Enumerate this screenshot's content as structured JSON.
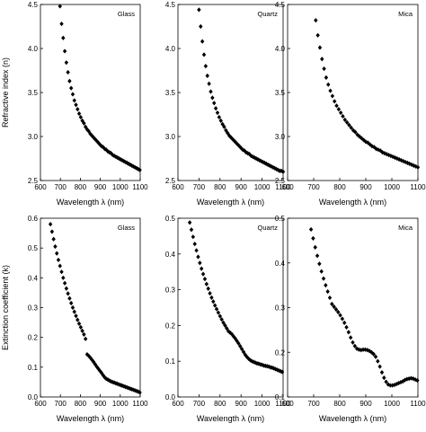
{
  "figure": {
    "background": "#ffffff",
    "marker_color": "#000000"
  },
  "chart_data": [
    {
      "type": "scatter",
      "row": "top",
      "title": "Glass",
      "xlabel": "Wavelength λ (nm)",
      "ylabel": "Refractive index (n)",
      "xlim": [
        600,
        1100
      ],
      "ylim": [
        2.5,
        4.5
      ],
      "xticks": [
        600,
        700,
        800,
        900,
        1000,
        1100
      ],
      "yticks": [
        "2.5",
        "3.0",
        "3.5",
        "4.0",
        "4.5"
      ],
      "x": [
        698,
        706,
        714,
        722,
        730,
        738,
        746,
        754,
        762,
        770,
        778,
        786,
        794,
        802,
        810,
        818,
        826,
        834,
        842,
        850,
        858,
        866,
        874,
        882,
        890,
        898,
        906,
        914,
        922,
        930,
        938,
        946,
        954,
        962,
        970,
        978,
        986,
        994,
        1002,
        1010,
        1018,
        1026,
        1034,
        1042,
        1050,
        1058,
        1066,
        1074,
        1082,
        1090,
        1098
      ],
      "y": [
        4.48,
        4.28,
        4.12,
        3.97,
        3.84,
        3.73,
        3.63,
        3.55,
        3.48,
        3.41,
        3.36,
        3.31,
        3.26,
        3.22,
        3.18,
        3.15,
        3.11,
        3.08,
        3.06,
        3.03,
        3.01,
        2.99,
        2.97,
        2.95,
        2.93,
        2.91,
        2.89,
        2.88,
        2.86,
        2.85,
        2.83,
        2.82,
        2.81,
        2.79,
        2.78,
        2.77,
        2.76,
        2.75,
        2.74,
        2.73,
        2.72,
        2.71,
        2.7,
        2.69,
        2.68,
        2.67,
        2.66,
        2.65,
        2.64,
        2.63,
        2.62
      ]
    },
    {
      "type": "scatter",
      "row": "top",
      "title": "Quartz",
      "xlabel": "Wavelength λ (nm)",
      "ylabel": "",
      "xlim": [
        600,
        1100
      ],
      "ylim": [
        2.5,
        4.5
      ],
      "xticks": [
        600,
        700,
        800,
        900,
        1000,
        1100
      ],
      "yticks": [
        "2.5",
        "3.0",
        "3.5",
        "4.0",
        "4.5"
      ],
      "x": [
        700,
        708,
        716,
        724,
        732,
        740,
        748,
        756,
        764,
        772,
        780,
        788,
        796,
        804,
        812,
        820,
        828,
        836,
        844,
        852,
        860,
        868,
        876,
        884,
        892,
        900,
        908,
        916,
        924,
        932,
        940,
        948,
        956,
        964,
        972,
        980,
        988,
        996,
        1004,
        1012,
        1020,
        1028,
        1036,
        1044,
        1052,
        1060,
        1068,
        1076,
        1084,
        1092,
        1100
      ],
      "y": [
        4.44,
        4.25,
        4.08,
        3.93,
        3.8,
        3.69,
        3.6,
        3.51,
        3.44,
        3.38,
        3.32,
        3.27,
        3.22,
        3.18,
        3.14,
        3.11,
        3.07,
        3.04,
        3.01,
        2.99,
        2.97,
        2.95,
        2.93,
        2.91,
        2.89,
        2.87,
        2.85,
        2.84,
        2.82,
        2.81,
        2.8,
        2.78,
        2.77,
        2.76,
        2.75,
        2.74,
        2.73,
        2.72,
        2.71,
        2.7,
        2.69,
        2.68,
        2.67,
        2.66,
        2.65,
        2.64,
        2.63,
        2.62,
        2.61,
        2.61,
        2.6
      ]
    },
    {
      "type": "scatter",
      "row": "top",
      "title": "Mica",
      "xlabel": "Wavelength λ (nm)",
      "ylabel": "",
      "xlim": [
        600,
        1100
      ],
      "ylim": [
        2.5,
        4.5
      ],
      "xticks": [
        600,
        700,
        800,
        900,
        1000,
        1100
      ],
      "yticks": [
        "2.5",
        "3.0",
        "3.5",
        "4.0",
        "4.5"
      ],
      "x": [
        708,
        716,
        724,
        732,
        740,
        748,
        756,
        764,
        772,
        780,
        788,
        796,
        804,
        812,
        820,
        828,
        836,
        844,
        852,
        860,
        868,
        876,
        884,
        892,
        900,
        908,
        916,
        924,
        932,
        940,
        948,
        956,
        964,
        972,
        980,
        988,
        996,
        1004,
        1012,
        1020,
        1028,
        1036,
        1044,
        1052,
        1060,
        1068,
        1076,
        1084,
        1092,
        1100
      ],
      "y": [
        4.32,
        4.15,
        4.01,
        3.88,
        3.77,
        3.67,
        3.59,
        3.52,
        3.46,
        3.4,
        3.35,
        3.31,
        3.27,
        3.23,
        3.19,
        3.16,
        3.13,
        3.1,
        3.07,
        3.05,
        3.02,
        3.0,
        2.98,
        2.96,
        2.94,
        2.93,
        2.91,
        2.89,
        2.88,
        2.86,
        2.85,
        2.84,
        2.82,
        2.81,
        2.8,
        2.79,
        2.78,
        2.77,
        2.76,
        2.75,
        2.74,
        2.73,
        2.72,
        2.71,
        2.7,
        2.69,
        2.68,
        2.67,
        2.66,
        2.65
      ]
    },
    {
      "type": "scatter",
      "row": "bottom",
      "title": "Glass",
      "xlabel": "Wavelength λ (nm)",
      "ylabel": "Extinction coefficient (k)",
      "xlim": [
        600,
        1100
      ],
      "ylim": [
        0.0,
        0.6
      ],
      "xticks": [
        600,
        700,
        800,
        900,
        1000,
        1100
      ],
      "yticks": [
        "0.0",
        "0.1",
        "0.2",
        "0.3",
        "0.4",
        "0.5",
        "0.6"
      ],
      "x": [
        650,
        658,
        666,
        674,
        682,
        690,
        698,
        706,
        714,
        722,
        730,
        738,
        746,
        754,
        762,
        770,
        778,
        786,
        794,
        802,
        810,
        818,
        826,
        834,
        842,
        850,
        858,
        866,
        874,
        882,
        890,
        898,
        906,
        914,
        922,
        930,
        938,
        946,
        954,
        962,
        970,
        978,
        986,
        994,
        1002,
        1010,
        1018,
        1026,
        1034,
        1042,
        1050,
        1058,
        1066,
        1074,
        1082,
        1090,
        1098
      ],
      "y": [
        0.58,
        0.555,
        0.53,
        0.505,
        0.482,
        0.46,
        0.44,
        0.42,
        0.4,
        0.382,
        0.364,
        0.347,
        0.331,
        0.315,
        0.3,
        0.286,
        0.272,
        0.259,
        0.246,
        0.234,
        0.222,
        0.21,
        0.195,
        0.143,
        0.138,
        0.132,
        0.125,
        0.118,
        0.11,
        0.102,
        0.095,
        0.088,
        0.081,
        0.073,
        0.066,
        0.061,
        0.058,
        0.055,
        0.052,
        0.05,
        0.048,
        0.046,
        0.044,
        0.042,
        0.04,
        0.038,
        0.036,
        0.034,
        0.032,
        0.03,
        0.028,
        0.026,
        0.024,
        0.022,
        0.02,
        0.018,
        0.015
      ]
    },
    {
      "type": "scatter",
      "row": "bottom",
      "title": "Quartz",
      "xlabel": "Wavelength λ (nm)",
      "ylabel": "",
      "xlim": [
        600,
        1100
      ],
      "ylim": [
        0.0,
        0.5
      ],
      "xticks": [
        600,
        700,
        800,
        900,
        1000,
        1100
      ],
      "yticks": [
        "0.0",
        "0.1",
        "0.2",
        "0.3",
        "0.4",
        "0.5"
      ],
      "x": [
        656,
        664,
        672,
        680,
        688,
        696,
        704,
        712,
        720,
        728,
        736,
        744,
        752,
        760,
        768,
        776,
        784,
        792,
        800,
        808,
        816,
        824,
        832,
        840,
        848,
        856,
        864,
        872,
        880,
        888,
        896,
        904,
        912,
        920,
        928,
        936,
        944,
        952,
        960,
        968,
        976,
        984,
        992,
        1000,
        1008,
        1016,
        1024,
        1032,
        1040,
        1048,
        1056,
        1064,
        1072,
        1080,
        1088,
        1096
      ],
      "y": [
        0.488,
        0.468,
        0.448,
        0.428,
        0.41,
        0.392,
        0.375,
        0.359,
        0.344,
        0.33,
        0.316,
        0.303,
        0.29,
        0.278,
        0.267,
        0.256,
        0.246,
        0.236,
        0.226,
        0.217,
        0.208,
        0.2,
        0.192,
        0.184,
        0.18,
        0.176,
        0.17,
        0.164,
        0.157,
        0.15,
        0.142,
        0.134,
        0.126,
        0.118,
        0.112,
        0.107,
        0.103,
        0.1,
        0.098,
        0.096,
        0.094,
        0.093,
        0.091,
        0.09,
        0.088,
        0.087,
        0.086,
        0.085,
        0.083,
        0.082,
        0.08,
        0.078,
        0.076,
        0.074,
        0.072,
        0.07
      ]
    },
    {
      "type": "scatter",
      "row": "bottom",
      "title": "Mica",
      "xlabel": "Wavelength λ (nm)",
      "ylabel": "",
      "xlim": [
        600,
        1100
      ],
      "ylim": [
        0.1,
        0.5
      ],
      "xticks": [
        600,
        700,
        800,
        900,
        1000,
        1100
      ],
      "yticks": [
        "0.1",
        "0.2",
        "0.3",
        "0.4",
        "0.5"
      ],
      "x": [
        690,
        698,
        706,
        714,
        722,
        730,
        738,
        746,
        754,
        762,
        770,
        778,
        786,
        794,
        802,
        810,
        818,
        826,
        834,
        842,
        850,
        858,
        866,
        874,
        882,
        890,
        898,
        906,
        914,
        922,
        930,
        938,
        946,
        954,
        962,
        970,
        978,
        986,
        994,
        1002,
        1010,
        1018,
        1026,
        1034,
        1042,
        1050,
        1058,
        1066,
        1074,
        1082,
        1090,
        1098
      ],
      "y": [
        0.475,
        0.455,
        0.435,
        0.416,
        0.398,
        0.381,
        0.365,
        0.35,
        0.336,
        0.322,
        0.308,
        0.302,
        0.296,
        0.29,
        0.283,
        0.275,
        0.266,
        0.256,
        0.245,
        0.233,
        0.222,
        0.214,
        0.208,
        0.206,
        0.205,
        0.206,
        0.206,
        0.205,
        0.203,
        0.2,
        0.196,
        0.19,
        0.18,
        0.168,
        0.155,
        0.143,
        0.134,
        0.128,
        0.126,
        0.126,
        0.127,
        0.129,
        0.131,
        0.133,
        0.135,
        0.138,
        0.14,
        0.141,
        0.142,
        0.141,
        0.139,
        0.137
      ]
    }
  ]
}
